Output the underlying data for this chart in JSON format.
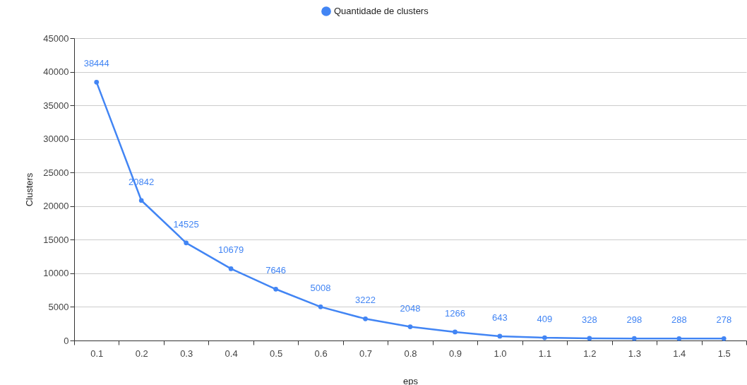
{
  "chart_data": {
    "type": "line",
    "xlabel": "eps",
    "ylabel": "Clusters",
    "categories": [
      "0.1",
      "0.2",
      "0.3",
      "0.4",
      "0.5",
      "0.6",
      "0.7",
      "0.8",
      "0.9",
      "1.0",
      "1.1",
      "1.2",
      "1.3",
      "1.4",
      "1.5"
    ],
    "series": [
      {
        "name": "Quantidade de clusters",
        "color": "#4285f4",
        "values": [
          38444,
          20842,
          14525,
          10679,
          7646,
          5008,
          3222,
          2048,
          1266,
          643,
          409,
          328,
          298,
          288,
          278
        ]
      }
    ],
    "ylim": [
      0,
      45000
    ],
    "yticks": [
      0,
      5000,
      10000,
      15000,
      20000,
      25000,
      30000,
      35000,
      40000,
      45000
    ],
    "grid": "y",
    "legend": "top",
    "marker": "circle",
    "data_labels": true
  }
}
